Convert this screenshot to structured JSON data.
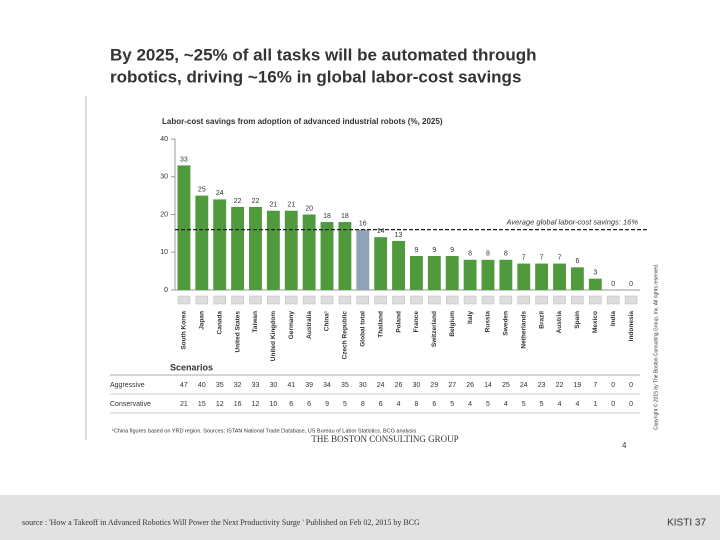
{
  "slide": {
    "title_lines": [
      "By 2025, ~25% of all tasks will be automated through",
      "robotics, driving ~16% in global labor-cost savings"
    ],
    "copyright": "Copyright © 2015 by The Boston Consulting Group, Inc. All rights reserved.",
    "footnote": "¹China figures based on YRD region. Sources: ISTAN National Trade Database, US Bureau of Labor Statistics, BCG analysis",
    "logo": "THE BOSTON CONSULTING GROUP",
    "page": "4",
    "source": "source : 'How a Takeoff in Advanced Robotics Will Power the Next Productivity Surge ' Published on Feb 02, 2015 by BCG",
    "footer_right": "KISTI 37"
  },
  "chart_data": {
    "type": "bar",
    "title": "Labor-cost savings from adoption of advanced industrial robots (%, 2025)",
    "categories": [
      "South Korea",
      "Japan",
      "Canada",
      "United States",
      "Taiwan",
      "United Kingdom",
      "Germany",
      "Australia",
      "China¹",
      "Czech Republic",
      "Global total",
      "Thailand",
      "Poland",
      "France",
      "Switzerland",
      "Belgium",
      "Italy",
      "Russia",
      "Sweden",
      "Netherlands",
      "Brazil",
      "Austria",
      "Spain",
      "Mexico",
      "India",
      "Indonesia"
    ],
    "values": [
      33,
      25,
      24,
      22,
      22,
      21,
      21,
      20,
      18,
      18,
      16,
      14,
      13,
      9,
      9,
      9,
      8,
      8,
      8,
      7,
      7,
      7,
      6,
      3,
      0,
      0
    ],
    "colors": [
      "#4f9a3c",
      "#4f9a3c",
      "#4f9a3c",
      "#4f9a3c",
      "#4f9a3c",
      "#4f9a3c",
      "#4f9a3c",
      "#4f9a3c",
      "#4f9a3c",
      "#4f9a3c",
      "#8fa2b6",
      "#4f9a3c",
      "#4f9a3c",
      "#4f9a3c",
      "#4f9a3c",
      "#4f9a3c",
      "#4f9a3c",
      "#4f9a3c",
      "#4f9a3c",
      "#4f9a3c",
      "#4f9a3c",
      "#4f9a3c",
      "#4f9a3c",
      "#4f9a3c",
      "#4f9a3c",
      "#4f9a3c"
    ],
    "ylim": [
      0,
      40
    ],
    "yticks": [
      0,
      10,
      20,
      30,
      40
    ],
    "average": 16,
    "average_label": "Average global labor-cost savings: 16%"
  },
  "scenarios": {
    "title": "Scenarios",
    "rows": [
      {
        "name": "Aggressive",
        "values": [
          47,
          40,
          35,
          32,
          33,
          30,
          41,
          39,
          34,
          35,
          30,
          24,
          26,
          30,
          29,
          27,
          26,
          14,
          25,
          24,
          23,
          22,
          19,
          7,
          0,
          0
        ]
      },
      {
        "name": "Conservative",
        "values": [
          21,
          15,
          12,
          16,
          12,
          10,
          6,
          6,
          9,
          5,
          8,
          6,
          4,
          8,
          6,
          5,
          4,
          5,
          4,
          5,
          5,
          4,
          4,
          1,
          0,
          0
        ]
      }
    ]
  }
}
